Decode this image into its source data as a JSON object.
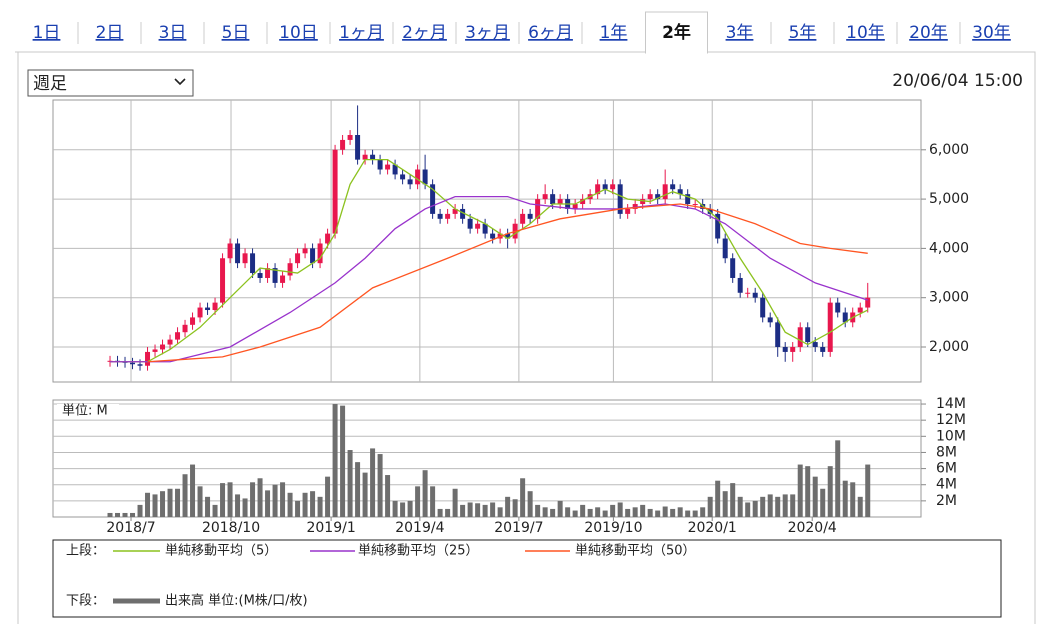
{
  "tabs": [
    "1日",
    "2日",
    "3日",
    "5日",
    "10日",
    "1ヶ月",
    "2ヶ月",
    "3ヶ月",
    "6ヶ月",
    "1年",
    "2年",
    "3年",
    "5年",
    "10年",
    "20年",
    "30年"
  ],
  "active_tab": 10,
  "period_select": "週足",
  "timestamp": "20/06/04 15:00",
  "legend": {
    "upper": "上段：",
    "lower": "下段："
  },
  "chart_data": [
    {
      "type": "candlestick",
      "up_color": "#e8174d",
      "down_color": "#1c2d84",
      "grid": true,
      "xlim": [
        -7.6,
        108.1
      ],
      "ylim": [
        1290,
        7010
      ],
      "yticks": [
        {
          "value": 2000,
          "label": "2,000"
        },
        {
          "value": 3000,
          "label": "3,000"
        },
        {
          "value": 4000,
          "label": "4,000"
        },
        {
          "value": 5000,
          "label": "5,000"
        },
        {
          "value": 6000,
          "label": "6,000"
        }
      ],
      "xticks": [
        {
          "value": 2.8,
          "label": "2018/7"
        },
        {
          "value": 16.13,
          "label": "2018/10"
        },
        {
          "value": 29.47,
          "label": "2019/1"
        },
        {
          "value": 41.3,
          "label": "2019/4"
        },
        {
          "value": 54.5,
          "label": "2019/7"
        },
        {
          "value": 67.1,
          "label": "2019/10"
        },
        {
          "value": 80.27,
          "label": "2020/1"
        },
        {
          "value": 93.6,
          "label": "2020/4"
        }
      ],
      "x": [
        0,
        1,
        2,
        3,
        4,
        5,
        6,
        7,
        8,
        9,
        10,
        11,
        12,
        13,
        14,
        15,
        16,
        17,
        18,
        19,
        20,
        21,
        22,
        23,
        24,
        25,
        26,
        27,
        28,
        29,
        30,
        31,
        32,
        33,
        34,
        35,
        36,
        37,
        38,
        39,
        40,
        41,
        42,
        43,
        44,
        45,
        46,
        47,
        48,
        49,
        50,
        51,
        52,
        53,
        54,
        55,
        56,
        57,
        58,
        59,
        60,
        61,
        62,
        63,
        64,
        65,
        66,
        67,
        68,
        69,
        70,
        71,
        72,
        73,
        74,
        75,
        76,
        77,
        78,
        79,
        80,
        81,
        82,
        83,
        84,
        85,
        86,
        87,
        88,
        89,
        90,
        91,
        92,
        93,
        94,
        95,
        96,
        97,
        98,
        99,
        100,
        101
      ],
      "open": [
        1700,
        1720,
        1700,
        1680,
        1650,
        1620,
        1900,
        1950,
        2050,
        2150,
        2300,
        2450,
        2600,
        2800,
        2750,
        2900,
        3800,
        4100,
        3700,
        3900,
        3500,
        3400,
        3600,
        3300,
        3450,
        3700,
        3900,
        4000,
        3700,
        4100,
        4300,
        6000,
        6200,
        6300,
        5800,
        5900,
        5800,
        5600,
        5700,
        5500,
        5400,
        5300,
        5600,
        5300,
        4700,
        4600,
        4700,
        4800,
        4600,
        4400,
        4500,
        4300,
        4200,
        4300,
        4200,
        4500,
        4700,
        4600,
        5000,
        5100,
        4900,
        5000,
        4800,
        4900,
        5000,
        5100,
        5300,
        5200,
        5300,
        4700,
        4800,
        4900,
        5000,
        5100,
        5000,
        5300,
        5200,
        5100,
        4900,
        4900,
        4800,
        4700,
        4200,
        3800,
        3400,
        3100,
        3100,
        3000,
        2600,
        2500,
        2000,
        1900,
        2000,
        2400,
        2100,
        2000,
        1900,
        2900,
        2700,
        2500,
        2700,
        2800
      ],
      "high": [
        1820,
        1820,
        1800,
        1780,
        1750,
        2000,
        2050,
        2150,
        2250,
        2400,
        2550,
        2700,
        2900,
        2900,
        3000,
        3900,
        4200,
        4200,
        4000,
        4000,
        3600,
        3700,
        3700,
        3550,
        3800,
        4000,
        4100,
        4100,
        4200,
        4400,
        6100,
        6300,
        6400,
        6900,
        6000,
        6000,
        5900,
        5800,
        5800,
        5600,
        5500,
        5700,
        5900,
        5400,
        4800,
        4800,
        4900,
        4900,
        4700,
        4600,
        4600,
        4400,
        4400,
        4400,
        4600,
        4800,
        4800,
        5100,
        5300,
        5200,
        5100,
        5100,
        5000,
        5100,
        5200,
        5400,
        5400,
        5400,
        5400,
        4900,
        5000,
        5100,
        5200,
        5200,
        5600,
        5400,
        5300,
        5200,
        5000,
        5000,
        4900,
        4800,
        4300,
        3900,
        3500,
        3200,
        3200,
        3100,
        2700,
        2600,
        2100,
        2100,
        2500,
        2500,
        2200,
        2100,
        3000,
        3000,
        2800,
        2800,
        2900,
        3300
      ],
      "low": [
        1600,
        1600,
        1580,
        1550,
        1520,
        1520,
        1800,
        1850,
        1950,
        2050,
        2200,
        2350,
        2500,
        2650,
        2650,
        2800,
        3700,
        3600,
        3600,
        3400,
        3300,
        3300,
        3200,
        3200,
        3350,
        3600,
        3800,
        3600,
        3600,
        4000,
        4200,
        5900,
        6100,
        5700,
        5700,
        5700,
        5500,
        5500,
        5400,
        5300,
        5200,
        5200,
        5200,
        4600,
        4500,
        4500,
        4600,
        4500,
        4300,
        4300,
        4200,
        4100,
        4100,
        4000,
        4100,
        4400,
        4500,
        4500,
        4900,
        4800,
        4800,
        4700,
        4700,
        4800,
        4900,
        5000,
        5100,
        5100,
        4600,
        4600,
        4700,
        4800,
        4900,
        4900,
        4900,
        5100,
        5000,
        4800,
        4800,
        4700,
        4600,
        4100,
        3700,
        3300,
        3000,
        3000,
        2900,
        2500,
        2400,
        1800,
        1700,
        1700,
        1900,
        2000,
        1900,
        1800,
        1800,
        2600,
        2400,
        2400,
        2600,
        2700
      ],
      "close": [
        1720,
        1700,
        1680,
        1650,
        1620,
        1900,
        1950,
        2050,
        2150,
        2300,
        2450,
        2600,
        2800,
        2750,
        2900,
        3800,
        4100,
        3700,
        3900,
        3500,
        3400,
        3600,
        3300,
        3450,
        3700,
        3900,
        4000,
        3700,
        4100,
        4300,
        6000,
        6200,
        6300,
        5800,
        5900,
        5800,
        5600,
        5700,
        5500,
        5400,
        5300,
        5600,
        5300,
        4700,
        4600,
        4700,
        4800,
        4600,
        4400,
        4500,
        4300,
        4200,
        4300,
        4200,
        4500,
        4700,
        4600,
        5000,
        5100,
        4900,
        5000,
        4800,
        4900,
        5000,
        5100,
        5300,
        5200,
        5300,
        4700,
        4800,
        4900,
        5000,
        5100,
        5000,
        5300,
        5200,
        5100,
        4900,
        4900,
        4800,
        4700,
        4200,
        3800,
        3400,
        3100,
        3100,
        3000,
        2600,
        2500,
        2000,
        1900,
        2000,
        2400,
        2100,
        2000,
        1900,
        2900,
        2700,
        2500,
        2700,
        2800,
        3000
      ],
      "series": [
        {
          "name": "単純移動平均（5）",
          "color": "#8cc21f",
          "x": [
            0,
            5,
            8,
            12,
            16,
            20,
            25,
            28,
            30,
            32,
            34,
            37,
            40,
            43,
            46,
            50,
            53,
            56,
            59,
            62,
            66,
            69,
            72,
            75,
            78,
            81,
            84,
            87,
            90,
            93,
            96,
            99,
            101
          ],
          "values": [
            1700,
            1700,
            1950,
            2400,
            3000,
            3600,
            3500,
            3800,
            4300,
            5300,
            5800,
            5800,
            5500,
            5200,
            4800,
            4500,
            4200,
            4500,
            4900,
            4900,
            5200,
            5000,
            4950,
            5150,
            5000,
            4600,
            3800,
            3100,
            2300,
            2050,
            2300,
            2600,
            2750
          ]
        },
        {
          "name": "単純移動平均（25）",
          "color": "#9933cc",
          "x": [
            0,
            8,
            16,
            24,
            30,
            34,
            38,
            42,
            46,
            53,
            56,
            62,
            68,
            74,
            78,
            82,
            88,
            94,
            98,
            101
          ],
          "values": [
            1700,
            1700,
            2000,
            2700,
            3300,
            3800,
            4400,
            4800,
            5050,
            5050,
            4900,
            4800,
            4800,
            4900,
            4800,
            4500,
            3800,
            3300,
            3100,
            2950
          ]
        },
        {
          "name": "単純移動平均（50）",
          "color": "#ff5522",
          "x": [
            5,
            10,
            15,
            20,
            28,
            35,
            45,
            53,
            60,
            68,
            76,
            80,
            86,
            92,
            96,
            101
          ],
          "values": [
            1700,
            1750,
            1800,
            2000,
            2400,
            3200,
            3800,
            4300,
            4600,
            4800,
            4900,
            4800,
            4500,
            4100,
            4000,
            3900
          ]
        }
      ]
    },
    {
      "type": "bar",
      "unit_label": "単位: M",
      "xlim": [
        -7.6,
        108.1
      ],
      "ylim": [
        0,
        14.5
      ],
      "grid": true,
      "yticks": [
        {
          "value": 2,
          "label": "2M"
        },
        {
          "value": 4,
          "label": "4M"
        },
        {
          "value": 6,
          "label": "6M"
        },
        {
          "value": 8,
          "label": "8M"
        },
        {
          "value": 10,
          "label": "10M"
        },
        {
          "value": 12,
          "label": "12M"
        },
        {
          "value": 14,
          "label": "14M"
        }
      ],
      "x": [
        0,
        1,
        2,
        3,
        4,
        5,
        6,
        7,
        8,
        9,
        10,
        11,
        12,
        13,
        14,
        15,
        16,
        17,
        18,
        19,
        20,
        21,
        22,
        23,
        24,
        25,
        26,
        27,
        28,
        29,
        30,
        31,
        32,
        33,
        34,
        35,
        36,
        37,
        38,
        39,
        40,
        41,
        42,
        43,
        44,
        45,
        46,
        47,
        48,
        49,
        50,
        51,
        52,
        53,
        54,
        55,
        56,
        57,
        58,
        59,
        60,
        61,
        62,
        63,
        64,
        65,
        66,
        67,
        68,
        69,
        70,
        71,
        72,
        73,
        74,
        75,
        76,
        77,
        78,
        79,
        80,
        81,
        82,
        83,
        84,
        85,
        86,
        87,
        88,
        89,
        90,
        91,
        92,
        93,
        94,
        95,
        96,
        97,
        98,
        99,
        100,
        101
      ],
      "series": [
        {
          "name": "出来高 単位:(M株/口/枚)",
          "color": "#6e6e6e",
          "values": [
            0.5,
            0.5,
            0.5,
            0.5,
            1.5,
            3,
            2.8,
            3.2,
            3.5,
            3.5,
            5.3,
            6.5,
            3.8,
            2.5,
            1.5,
            4.2,
            4.3,
            2.8,
            2.3,
            4.3,
            4.8,
            3.3,
            4,
            4.3,
            3,
            2,
            3,
            3.2,
            2.5,
            5,
            14,
            13.8,
            8.3,
            6.8,
            5.5,
            8.5,
            7.8,
            5.2,
            2,
            1.8,
            2,
            3.8,
            5.8,
            3.8,
            1,
            1,
            3.5,
            1.5,
            1.8,
            1.7,
            1.5,
            1.8,
            1.2,
            2.5,
            2.2,
            4.8,
            3.2,
            1.5,
            1.2,
            1.0,
            2.0,
            1.2,
            0.8,
            1.5,
            1.0,
            1.2,
            0.8,
            1.5,
            1.8,
            1.0,
            1.2,
            1.5,
            1.0,
            0.8,
            1.3,
            1.0,
            1.2,
            0.8,
            0.8,
            1.2,
            2.5,
            4.5,
            3.2,
            4.2,
            2.5,
            1.8,
            2.0,
            2.5,
            2.8,
            2.5,
            2.8,
            2.8,
            6.5,
            6.3,
            5.0,
            3.5,
            6.3,
            9.5,
            4.5,
            4.3,
            2.5,
            6.5
          ]
        }
      ]
    }
  ]
}
